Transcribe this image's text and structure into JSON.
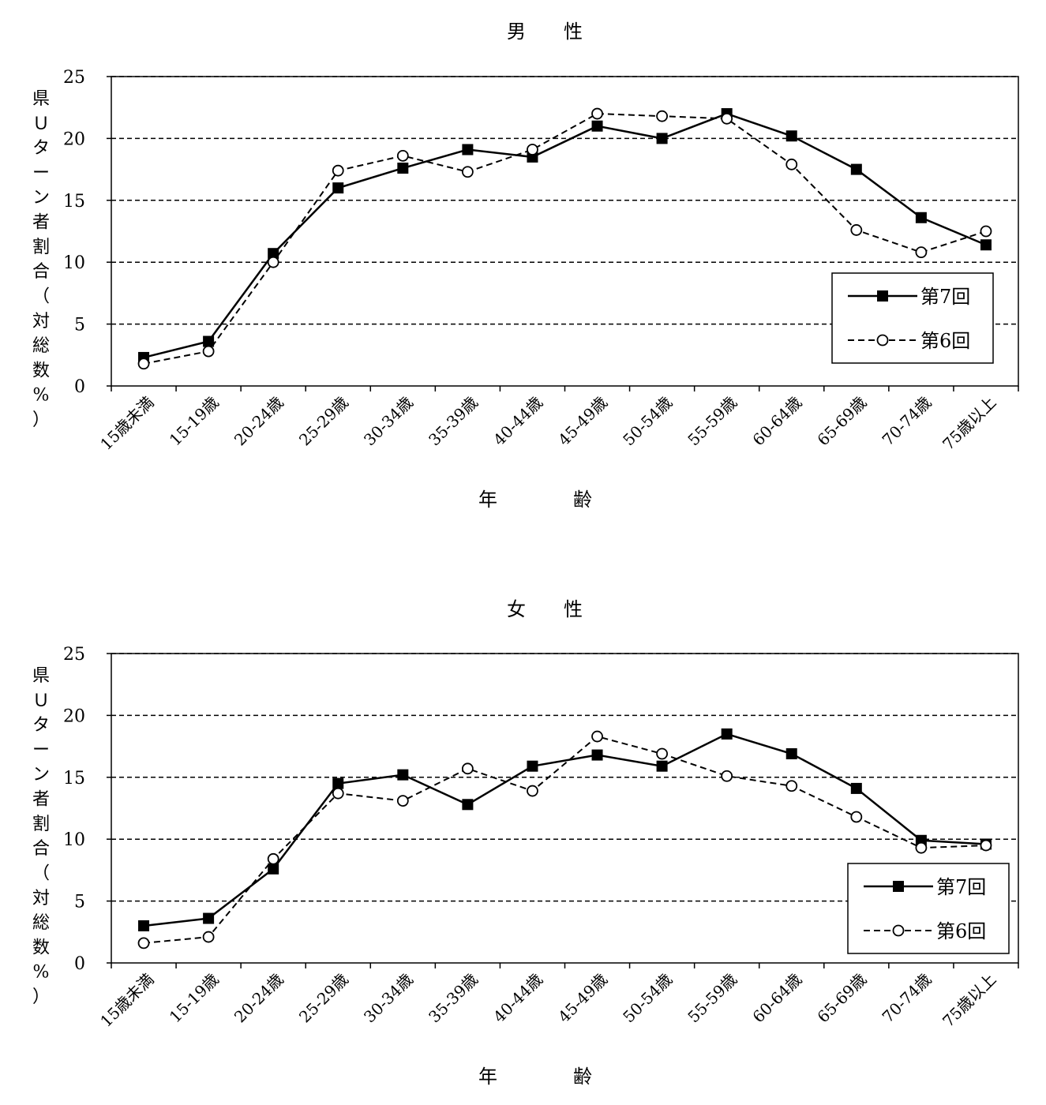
{
  "colors": {
    "ink": "#000000",
    "background": "#ffffff"
  },
  "chart_data": [
    {
      "type": "line",
      "title": "男　　性",
      "xlabel": "年　　　　齢",
      "ylabel": [
        "県",
        "Ｕ",
        "タ",
        "ー",
        "ン",
        "者",
        "割",
        "合",
        "（",
        "対",
        "総",
        "数",
        "%",
        "）"
      ],
      "categories": [
        "15歳未満",
        "15-19歳",
        "20-24歳",
        "25-29歳",
        "30-34歳",
        "35-39歳",
        "40-44歳",
        "45-49歳",
        "50-54歳",
        "55-59歳",
        "60-64歳",
        "65-69歳",
        "70-74歳",
        "75歳以上"
      ],
      "ylim": [
        0,
        25
      ],
      "yticks": [
        "0",
        "5",
        "10",
        "15",
        "20",
        "25"
      ],
      "grid": "dashed horizontal",
      "legend_position": "right",
      "series": [
        {
          "name": "第7回",
          "style": "solid",
          "marker": "filled-square",
          "values": [
            2.3,
            3.6,
            10.7,
            16.0,
            17.6,
            19.1,
            18.5,
            21.0,
            20.0,
            22.0,
            20.2,
            17.5,
            13.6,
            11.4
          ]
        },
        {
          "name": "第6回",
          "style": "dashed",
          "marker": "open-circle",
          "values": [
            1.8,
            2.8,
            10.0,
            17.4,
            18.6,
            17.3,
            19.1,
            22.0,
            21.8,
            21.6,
            17.9,
            12.6,
            10.8,
            12.5
          ]
        }
      ]
    },
    {
      "type": "line",
      "title": "女　　性",
      "xlabel": "年　　　　齢",
      "ylabel": [
        "県",
        "Ｕ",
        "タ",
        "ー",
        "ン",
        "者",
        "割",
        "合",
        "（",
        "対",
        "総",
        "数",
        "%",
        "）"
      ],
      "categories": [
        "15歳未満",
        "15-19歳",
        "20-24歳",
        "25-29歳",
        "30-34歳",
        "35-39歳",
        "40-44歳",
        "45-49歳",
        "50-54歳",
        "55-59歳",
        "60-64歳",
        "65-69歳",
        "70-74歳",
        "75歳以上"
      ],
      "ylim": [
        0,
        25
      ],
      "yticks": [
        "0",
        "5",
        "10",
        "15",
        "20",
        "25"
      ],
      "grid": "dashed horizontal",
      "legend_position": "bottom-right",
      "series": [
        {
          "name": "第7回",
          "style": "solid",
          "marker": "filled-square",
          "values": [
            3.0,
            3.6,
            7.6,
            14.5,
            15.2,
            12.8,
            15.9,
            16.8,
            15.9,
            18.5,
            16.9,
            14.1,
            9.9,
            9.6
          ]
        },
        {
          "name": "第6回",
          "style": "dashed",
          "marker": "open-circle",
          "values": [
            1.6,
            2.1,
            8.4,
            13.7,
            13.1,
            15.7,
            13.9,
            18.3,
            16.9,
            15.1,
            14.3,
            11.8,
            9.3,
            9.5
          ]
        }
      ]
    }
  ]
}
